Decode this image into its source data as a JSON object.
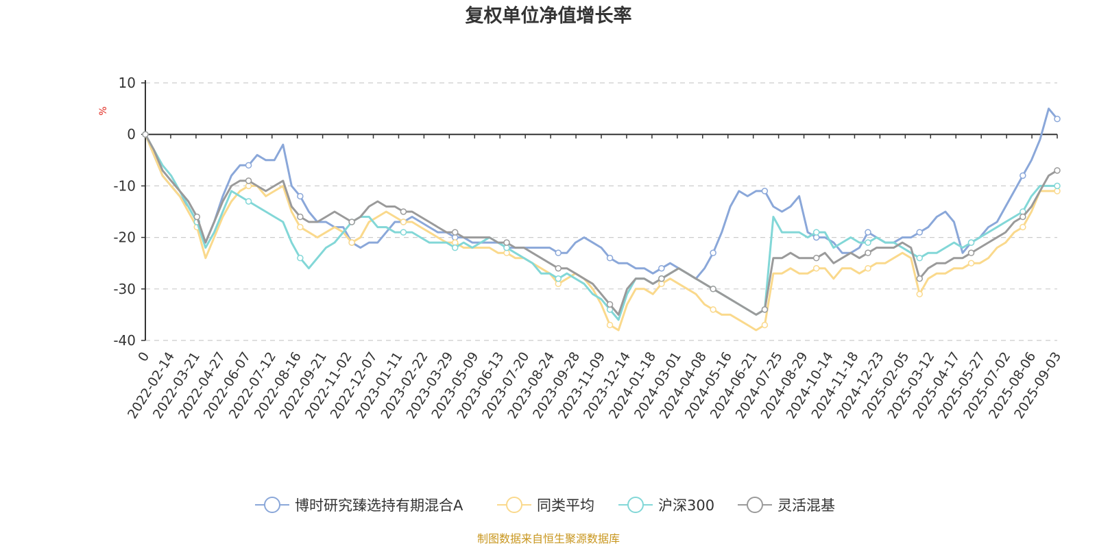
{
  "chart_data": {
    "type": "line",
    "title": "复权单位净值增长率",
    "ylabel": "%",
    "ylim": [
      -40,
      10
    ],
    "yticks": [
      10,
      0,
      -10,
      -20,
      -30,
      -40
    ],
    "grid": true,
    "legend_position": "bottom-center",
    "x_tick_labels": [
      "0",
      "2022-02-14",
      "2022-03-21",
      "2022-04-27",
      "2022-06-07",
      "2022-07-12",
      "2022-08-16",
      "2022-09-21",
      "2022-11-02",
      "2022-12-07",
      "2023-01-11",
      "2023-02-22",
      "2023-03-29",
      "2023-05-09",
      "2023-06-13",
      "2023-07-20",
      "2023-08-24",
      "2023-09-28",
      "2023-11-09",
      "2023-12-14",
      "2024-01-18",
      "2024-03-01",
      "2024-04-08",
      "2024-05-16",
      "2024-06-21",
      "2024-07-25",
      "2024-08-29",
      "2024-10-14",
      "2024-11-18",
      "2024-12-23",
      "2025-02-05",
      "2025-03-12",
      "2025-04-17",
      "2025-05-27",
      "2025-07-02",
      "2025-08-06",
      "2025-09-03"
    ],
    "series": [
      {
        "name": "博时研究臻选持有期混合A",
        "color": "#8aa7d9",
        "values": [
          0,
          -4,
          -8,
          -10,
          -12,
          -14,
          -17,
          -21,
          -17,
          -12,
          -8,
          -6,
          -6,
          -4,
          -5,
          -5,
          -2,
          -10,
          -12,
          -15,
          -17,
          -17,
          -18,
          -18,
          -21,
          -22,
          -21,
          -21,
          -19,
          -17,
          -17,
          -16,
          -17,
          -18,
          -19,
          -19,
          -20,
          -20,
          -21,
          -21,
          -21,
          -21,
          -22,
          -22,
          -22,
          -22,
          -22,
          -22,
          -23,
          -23,
          -21,
          -20,
          -21,
          -22,
          -24,
          -25,
          -25,
          -26,
          -26,
          -27,
          -26,
          -25,
          -26,
          -27,
          -28,
          -26,
          -23,
          -19,
          -14,
          -11,
          -12,
          -11,
          -11,
          -14,
          -15,
          -14,
          -12,
          -19,
          -20,
          -20,
          -21,
          -23,
          -23,
          -22,
          -19,
          -20,
          -21,
          -21,
          -20,
          -20,
          -19,
          -18,
          -16,
          -15,
          -17,
          -23,
          -21,
          -20,
          -18,
          -17,
          -14,
          -11,
          -8,
          -5,
          -1,
          5,
          3
        ]
      },
      {
        "name": "同类平均",
        "color": "#fad98c",
        "values": [
          0,
          -4,
          -8,
          -10,
          -12,
          -15,
          -18,
          -24,
          -20,
          -16,
          -13,
          -11,
          -10,
          -10,
          -12,
          -11,
          -10,
          -15,
          -18,
          -19,
          -20,
          -19,
          -18,
          -19,
          -21,
          -20,
          -17,
          -16,
          -15,
          -16,
          -17,
          -17,
          -18,
          -19,
          -20,
          -21,
          -21,
          -22,
          -22,
          -22,
          -22,
          -23,
          -23,
          -24,
          -24,
          -25,
          -26,
          -27,
          -29,
          -28,
          -27,
          -28,
          -30,
          -33,
          -37,
          -38,
          -33,
          -30,
          -30,
          -31,
          -29,
          -28,
          -29,
          -30,
          -31,
          -33,
          -34,
          -35,
          -35,
          -36,
          -37,
          -38,
          -37,
          -27,
          -27,
          -26,
          -27,
          -27,
          -26,
          -26,
          -28,
          -26,
          -26,
          -27,
          -26,
          -25,
          -25,
          -24,
          -23,
          -24,
          -31,
          -28,
          -27,
          -27,
          -26,
          -26,
          -25,
          -25,
          -24,
          -22,
          -21,
          -19,
          -18,
          -15,
          -11,
          -11,
          -11
        ]
      },
      {
        "name": "沪深300",
        "color": "#82d7d7",
        "values": [
          0,
          -3,
          -6,
          -8,
          -11,
          -14,
          -17,
          -22,
          -19,
          -15,
          -11,
          -12,
          -13,
          -14,
          -15,
          -16,
          -17,
          -21,
          -24,
          -26,
          -24,
          -22,
          -21,
          -19,
          -17,
          -16,
          -16,
          -18,
          -18,
          -19,
          -19,
          -19,
          -20,
          -21,
          -21,
          -21,
          -22,
          -21,
          -22,
          -21,
          -20,
          -21,
          -22,
          -23,
          -24,
          -25,
          -27,
          -27,
          -28,
          -27,
          -28,
          -29,
          -31,
          -32,
          -34,
          -36,
          -31,
          -28,
          -28,
          -29,
          -28,
          -27,
          -26,
          -27,
          -28,
          -29,
          -30,
          -31,
          -32,
          -33,
          -34,
          -35,
          -34,
          -16,
          -19,
          -19,
          -19,
          -20,
          -19,
          -19,
          -22,
          -21,
          -20,
          -21,
          -21,
          -20,
          -21,
          -21,
          -22,
          -23,
          -24,
          -23,
          -23,
          -22,
          -21,
          -22,
          -21,
          -20,
          -19,
          -18,
          -17,
          -16,
          -15,
          -12,
          -10,
          -10,
          -10
        ]
      },
      {
        "name": "灵活混基",
        "color": "#9a9a9a",
        "values": [
          0,
          -3,
          -7,
          -9,
          -11,
          -13,
          -16,
          -21,
          -17,
          -13,
          -10,
          -9,
          -9,
          -10,
          -11,
          -10,
          -9,
          -14,
          -16,
          -17,
          -17,
          -16,
          -15,
          -16,
          -17,
          -16,
          -14,
          -13,
          -14,
          -14,
          -15,
          -15,
          -16,
          -17,
          -18,
          -19,
          -19,
          -20,
          -20,
          -20,
          -20,
          -21,
          -21,
          -22,
          -22,
          -23,
          -24,
          -25,
          -26,
          -26,
          -27,
          -28,
          -29,
          -31,
          -33,
          -35,
          -30,
          -28,
          -28,
          -29,
          -28,
          -27,
          -26,
          -27,
          -28,
          -29,
          -30,
          -31,
          -32,
          -33,
          -34,
          -35,
          -34,
          -24,
          -24,
          -23,
          -24,
          -24,
          -24,
          -23,
          -25,
          -24,
          -23,
          -24,
          -23,
          -22,
          -22,
          -22,
          -21,
          -22,
          -28,
          -26,
          -25,
          -25,
          -24,
          -24,
          -23,
          -22,
          -21,
          -20,
          -19,
          -17,
          -16,
          -14,
          -11,
          -8,
          -7
        ]
      }
    ]
  },
  "source_text": "制图数据来自恒生聚源数据库"
}
